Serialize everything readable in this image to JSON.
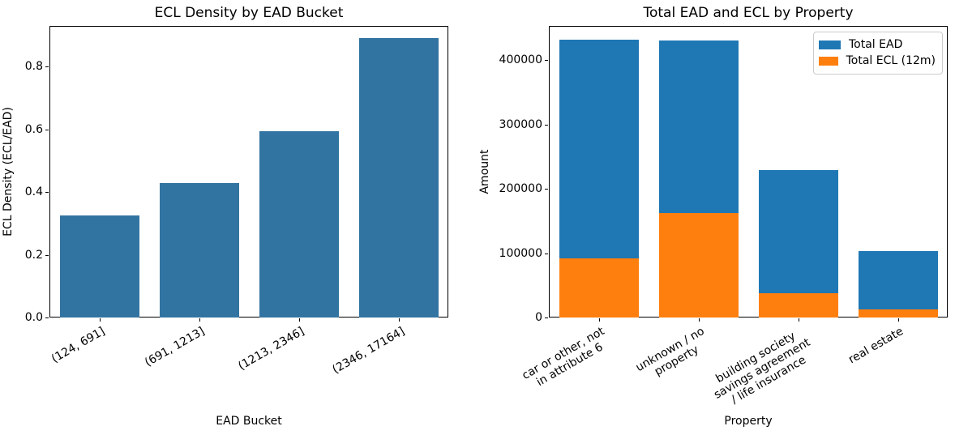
{
  "figure": {
    "background_color": "#ffffff",
    "spine_color": "#000000"
  },
  "chart_data": [
    {
      "type": "bar",
      "title": "ECL Density by EAD Bucket",
      "xlabel": "EAD Bucket",
      "ylabel": "ECL Density (ECL/EAD)",
      "categories": [
        "(124, 691]",
        "(691, 1213]",
        "(1213, 2346]",
        "(2346, 17164]"
      ],
      "values": [
        0.325,
        0.43,
        0.595,
        0.89
      ],
      "bar_color": "#3274a1",
      "ylim": [
        0,
        0.93
      ],
      "yticks": [
        0,
        0.2,
        0.4,
        0.6,
        0.8
      ],
      "ytick_labels": [
        "0.0",
        "0.2",
        "0.4",
        "0.6",
        "0.8"
      ],
      "grid": false,
      "xtick_rotation_deg": 30,
      "legend": null
    },
    {
      "type": "bar",
      "title": "Total EAD and ECL by Property",
      "xlabel": "Property",
      "ylabel": "Amount",
      "categories": [
        "car or other, not\nin attribute 6",
        "unknown / no\nproperty",
        "building society\nsavings agreement\n/ life insurance",
        "real estate"
      ],
      "series": [
        {
          "name": "Total EAD",
          "color": "#1f77b4",
          "values": [
            432000,
            430000,
            229000,
            103000
          ]
        },
        {
          "name": "Total ECL (12m)",
          "color": "#ff7f0e",
          "values": [
            92000,
            162000,
            38000,
            12000
          ]
        }
      ],
      "overlay_from_zero": true,
      "ylim": [
        0,
        453000
      ],
      "yticks": [
        0,
        100000,
        200000,
        300000,
        400000
      ],
      "ytick_labels": [
        "0",
        "100000",
        "200000",
        "300000",
        "400000"
      ],
      "grid": false,
      "xtick_rotation_deg": 30,
      "legend": {
        "position": "upper right"
      }
    }
  ]
}
